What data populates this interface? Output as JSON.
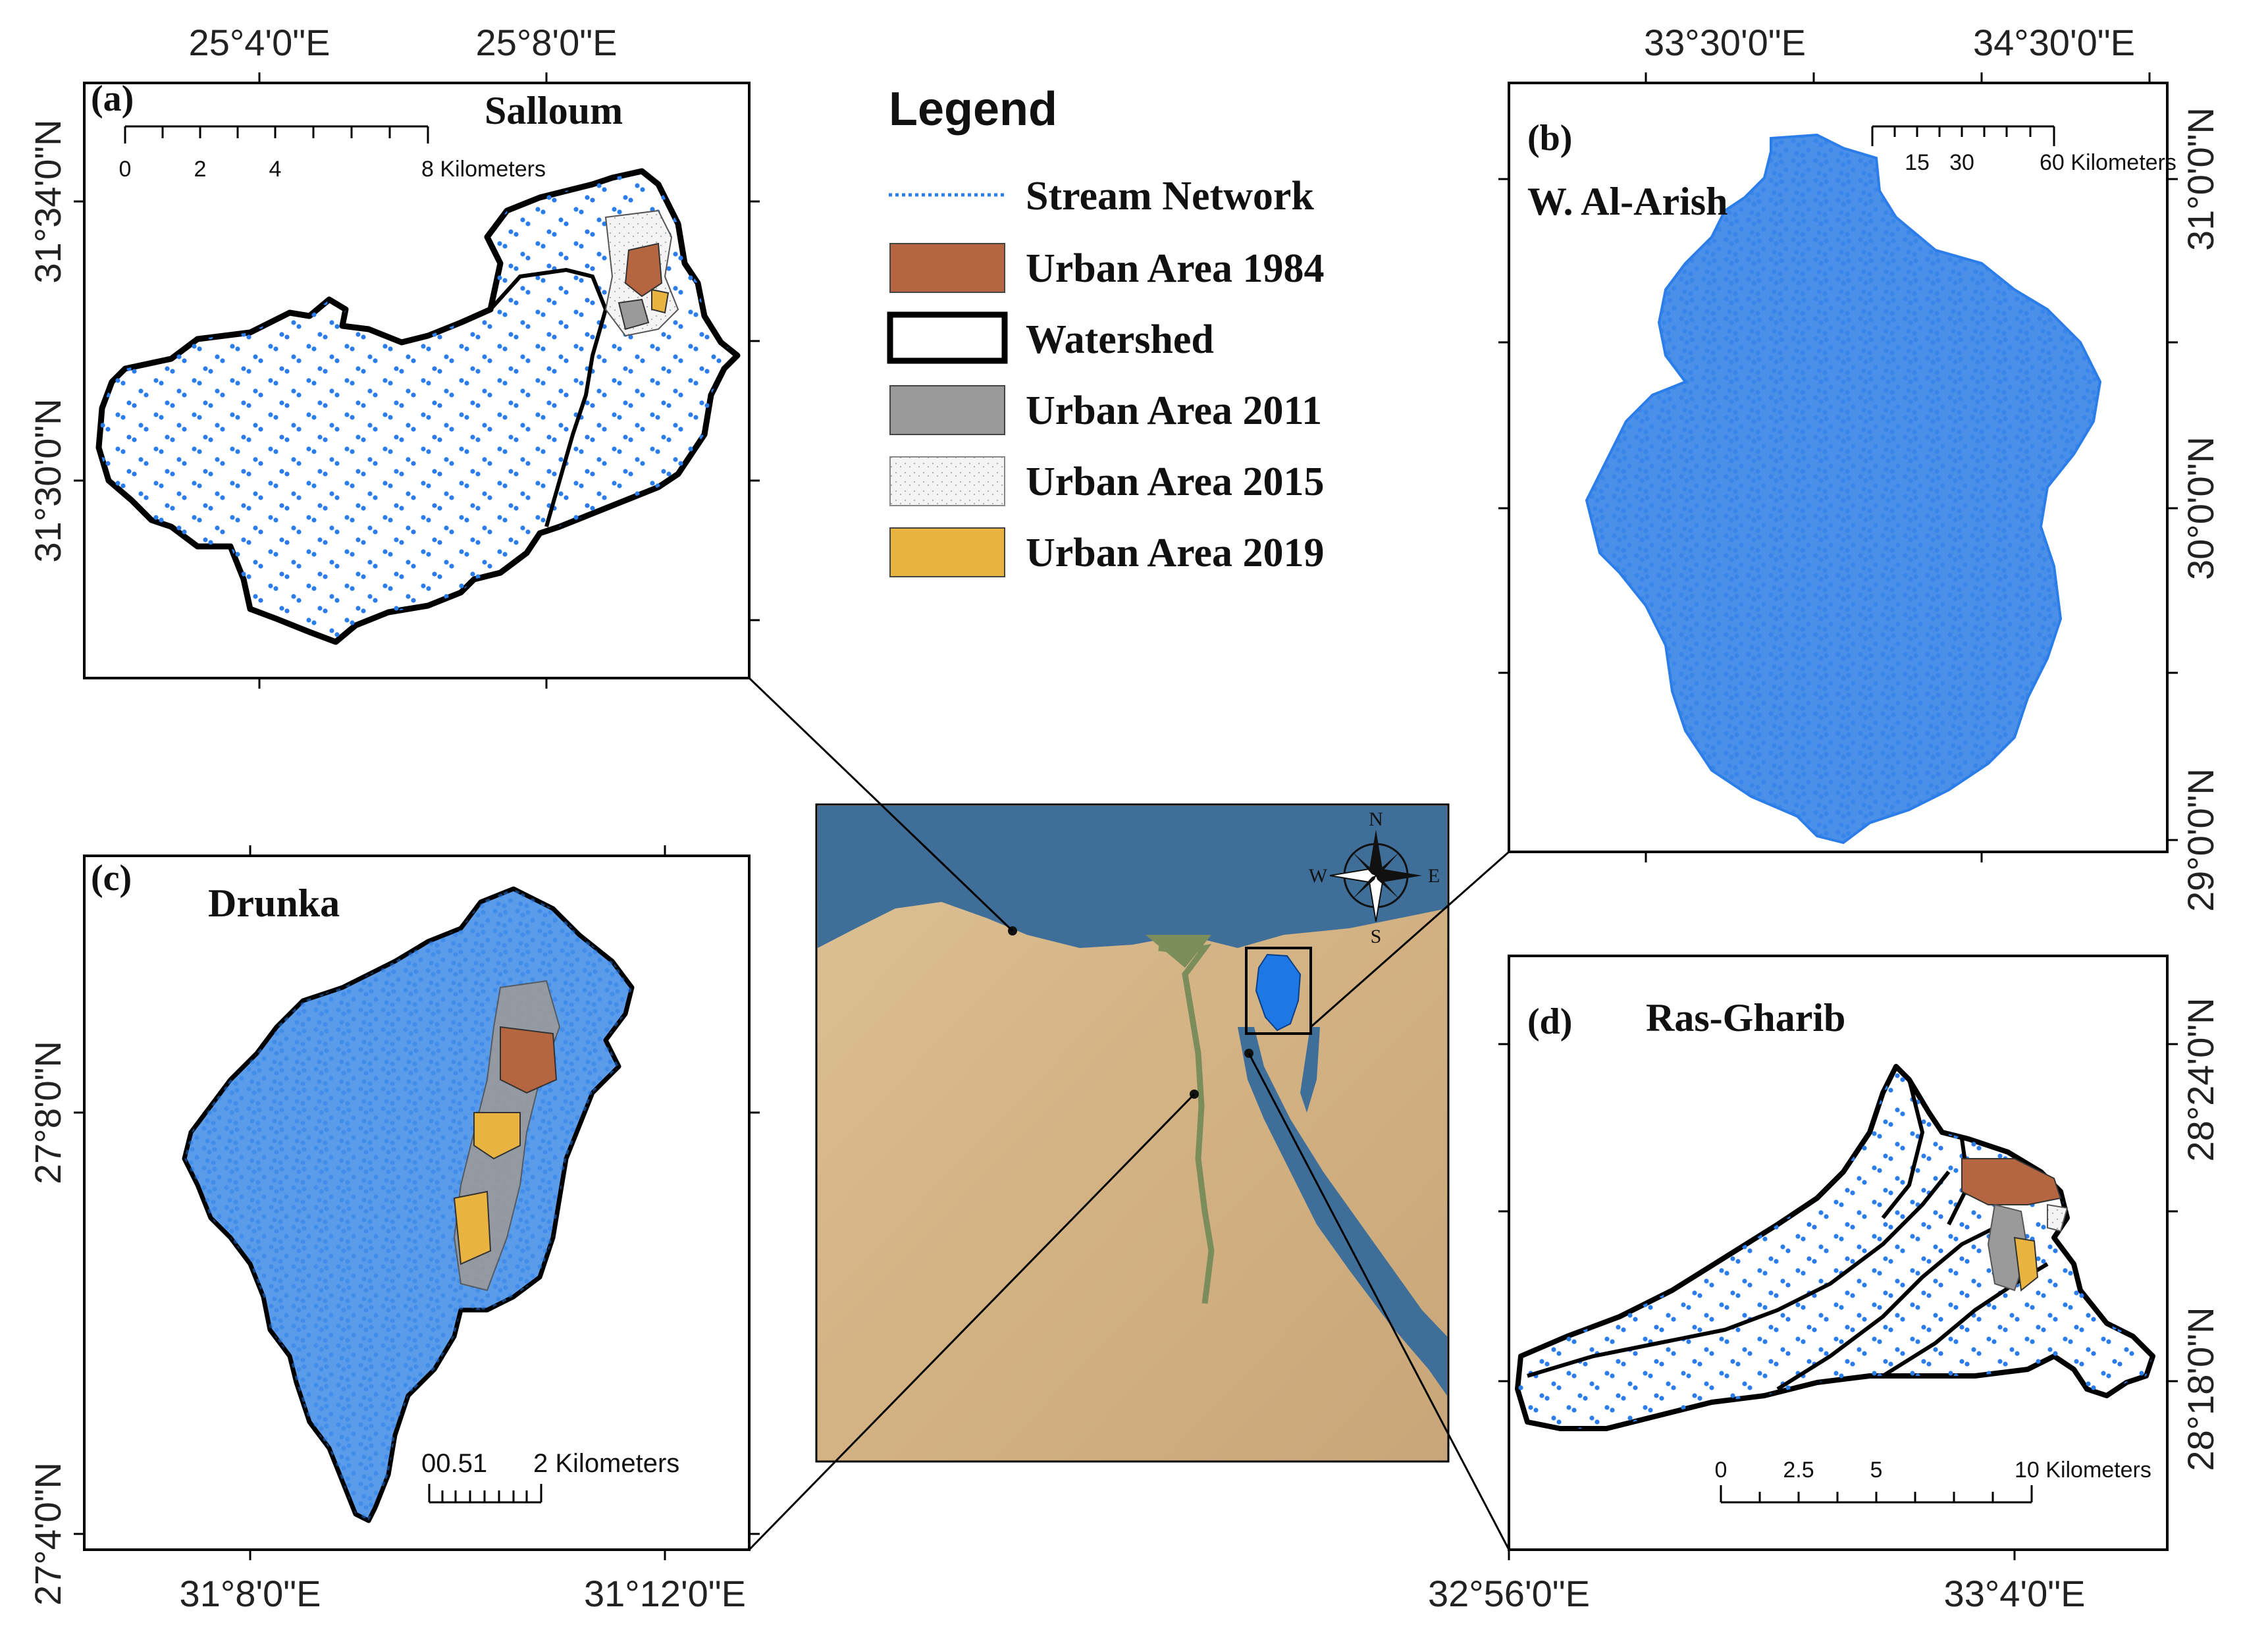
{
  "legend": {
    "title": "Legend",
    "items": [
      {
        "label": "Stream Network",
        "kind": "line",
        "color": "#2b7de9"
      },
      {
        "label": "Urban Area 1984",
        "kind": "fill",
        "color": "#b5653f"
      },
      {
        "label": "Watershed",
        "kind": "outline",
        "color": "#000000"
      },
      {
        "label": "Urban Area 2011",
        "kind": "fill",
        "color": "#9a9a9a"
      },
      {
        "label": "Urban Area 2015",
        "kind": "dots",
        "color": "#f2f2f2"
      },
      {
        "label": "Urban Area 2019",
        "kind": "fill",
        "color": "#e8b33f"
      }
    ]
  },
  "panels": {
    "a": {
      "label": "(a)",
      "name": "Salloum",
      "top_ticks": [
        "25°4'0\"E",
        "25°8'0\"E"
      ],
      "left_ticks": [
        "31°34'0\"N",
        "31°30'0\"N"
      ],
      "scalebar": {
        "ticks": [
          "0",
          "2",
          "4"
        ],
        "end": "8 Kilometers"
      }
    },
    "b": {
      "label": "(b)",
      "name": "W. Al-Arish",
      "top_ticks": [
        "33°30'0\"E",
        "34°30'0\"E"
      ],
      "right_ticks": [
        "31°0'0\"N",
        "30°0'0\"N",
        "29°0'0\"N"
      ],
      "scalebar": {
        "ticks": [
          "15",
          "30"
        ],
        "end": "60 Kilometers"
      }
    },
    "c": {
      "label": "(c)",
      "name": "Drunka",
      "left_ticks": [
        "27°8'0\"N",
        "27°4'0\"N"
      ],
      "bottom_ticks": [
        "31°8'0\"E",
        "31°12'0\"E"
      ],
      "scalebar": {
        "ticks": [
          "00.51"
        ],
        "end": "2 Kilometers"
      }
    },
    "d": {
      "label": "(d)",
      "name": "Ras-Gharib",
      "right_ticks": [
        "28°24'0\"N",
        "28°18'0\"N"
      ],
      "bottom_ticks": [
        "32°56'0\"E",
        "33°4'0\"E"
      ],
      "scalebar": {
        "ticks": [
          "0",
          "2.5",
          "5"
        ],
        "end": "10 Kilometers"
      }
    }
  },
  "overview": {
    "compass": {
      "n": "N",
      "s": "S",
      "e": "E",
      "w": "W"
    },
    "colors": {
      "sea": "#3f6f99",
      "desert": "#d9b98a",
      "nile": "#7c8d5c",
      "watershed": "#1d78e6"
    }
  }
}
